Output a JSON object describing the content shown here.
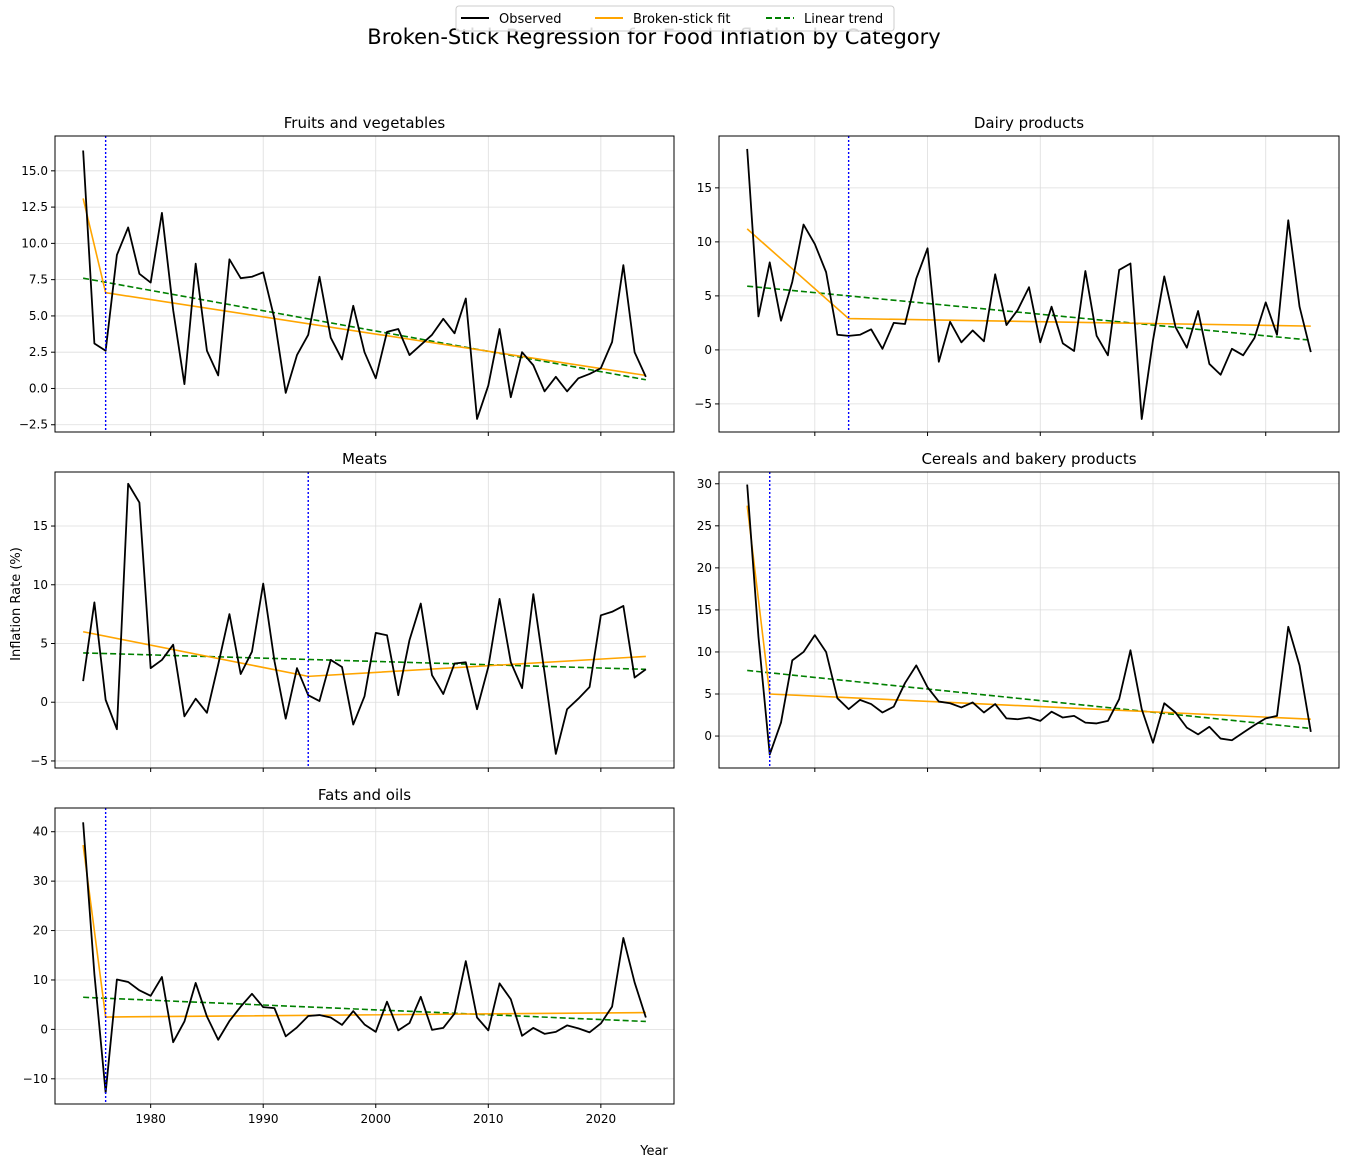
{
  "figure": {
    "title": "Broken-Stick Regression for Food Inflation by Category",
    "xlabel": "Year",
    "ylabel": "Inflation Rate (%)",
    "legend": [
      "Observed",
      "Broken-stick fit",
      "Linear trend"
    ],
    "colors": {
      "observed": "#000000",
      "fit": "#ffa500",
      "trend": "#008000",
      "breakpoint": "#0000ff"
    }
  },
  "chart_data": [
    {
      "type": "line",
      "title": "Fruits and vegetables",
      "x_start": 1974,
      "xlim": [
        1971.5,
        2026.5
      ],
      "ylim": [
        -3.0,
        17.4
      ],
      "yticks": [
        -2.5,
        0.0,
        2.5,
        5.0,
        7.5,
        10.0,
        12.5,
        15.0
      ],
      "ytick_labels": [
        "−2.5",
        "0.0",
        "2.5",
        "5.0",
        "7.5",
        "10.0",
        "12.5",
        "15.0"
      ],
      "observed": [
        16.4,
        3.1,
        2.6,
        9.2,
        11.1,
        7.9,
        7.3,
        12.1,
        5.4,
        0.3,
        8.6,
        2.6,
        0.9,
        8.9,
        7.6,
        7.7,
        8.0,
        4.8,
        -0.3,
        2.3,
        3.7,
        7.7,
        3.5,
        2.0,
        5.7,
        2.5,
        0.7,
        3.9,
        4.1,
        2.3,
        3.0,
        3.7,
        4.8,
        3.8,
        6.2,
        -2.1,
        0.2,
        4.1,
        -0.6,
        2.5,
        1.6,
        -0.2,
        0.8,
        -0.2,
        0.7,
        1.0,
        1.4,
        3.2,
        8.5,
        2.5,
        0.8
      ],
      "breakpoint": 1976,
      "fit": [
        [
          1974,
          13.1
        ],
        [
          1976,
          6.6
        ],
        [
          2024,
          0.9
        ]
      ],
      "trend": [
        [
          1974,
          7.6
        ],
        [
          2024,
          0.6
        ]
      ]
    },
    {
      "type": "line",
      "title": "Dairy products",
      "x_start": 1974,
      "xlim": [
        1971.5,
        2026.5
      ],
      "ylim": [
        -7.6,
        19.8
      ],
      "yticks": [
        -5,
        0,
        5,
        10,
        15
      ],
      "ytick_labels": [
        "−5",
        "0",
        "5",
        "10",
        "15"
      ],
      "observed": [
        18.6,
        3.1,
        8.1,
        2.7,
        6.3,
        11.6,
        9.8,
        7.2,
        1.4,
        1.3,
        1.4,
        1.9,
        0.1,
        2.5,
        2.4,
        6.6,
        9.4,
        -1.1,
        2.6,
        0.7,
        1.8,
        0.8,
        7.0,
        2.3,
        3.7,
        5.8,
        0.7,
        4.0,
        0.6,
        -0.1,
        7.3,
        1.3,
        -0.5,
        7.4,
        8.0,
        -6.4,
        0.9,
        6.8,
        2.1,
        0.2,
        3.6,
        -1.3,
        -2.3,
        0.1,
        -0.5,
        1.1,
        4.4,
        1.4,
        12.0,
        4.0,
        -0.2
      ],
      "breakpoint": 1983,
      "fit": [
        [
          1974,
          11.2
        ],
        [
          1983,
          2.9
        ],
        [
          2024,
          2.2
        ]
      ],
      "trend": [
        [
          1974,
          5.9
        ],
        [
          2024,
          0.9
        ]
      ]
    },
    {
      "type": "line",
      "title": "Meats",
      "x_start": 1974,
      "xlim": [
        1971.5,
        2026.5
      ],
      "ylim": [
        -5.6,
        19.6
      ],
      "yticks": [
        -5,
        0,
        5,
        10,
        15
      ],
      "ytick_labels": [
        "−5",
        "0",
        "5",
        "10",
        "15"
      ],
      "observed": [
        1.8,
        8.5,
        0.2,
        -2.3,
        18.6,
        17.0,
        2.9,
        3.6,
        4.9,
        -1.2,
        0.3,
        -0.9,
        3.2,
        7.5,
        2.4,
        4.3,
        10.1,
        3.5,
        -1.4,
        2.9,
        0.6,
        0.1,
        3.6,
        3.0,
        -1.9,
        0.5,
        5.9,
        5.7,
        0.6,
        5.3,
        8.4,
        2.3,
        0.7,
        3.3,
        3.4,
        -0.6,
        3.0,
        8.8,
        3.4,
        1.2,
        9.2,
        2.5,
        -4.4,
        -0.6,
        0.3,
        1.3,
        7.4,
        7.7,
        8.2,
        2.1,
        2.8
      ],
      "breakpoint": 1994,
      "fit": [
        [
          1974,
          6.0
        ],
        [
          1994,
          2.2
        ],
        [
          2024,
          3.9
        ]
      ],
      "trend": [
        [
          1974,
          4.2
        ],
        [
          2024,
          2.8
        ]
      ]
    },
    {
      "type": "line",
      "title": "Cereals and bakery products",
      "x_start": 1974,
      "xlim": [
        1971.5,
        2026.5
      ],
      "ylim": [
        -3.8,
        31.4
      ],
      "yticks": [
        0,
        5,
        10,
        15,
        20,
        25,
        30
      ],
      "ytick_labels": [
        "0",
        "5",
        "10",
        "15",
        "20",
        "25",
        "30"
      ],
      "observed": [
        29.9,
        11.8,
        -2.2,
        1.6,
        9.0,
        10.0,
        12.0,
        10.0,
        4.5,
        3.2,
        4.3,
        3.8,
        2.8,
        3.5,
        6.3,
        8.4,
        5.8,
        4.1,
        3.9,
        3.4,
        4.0,
        2.8,
        3.8,
        2.1,
        2.0,
        2.2,
        1.8,
        2.9,
        2.2,
        2.4,
        1.6,
        1.5,
        1.8,
        4.4,
        10.2,
        3.2,
        -0.8,
        3.9,
        2.8,
        1.0,
        0.2,
        1.1,
        -0.3,
        -0.5,
        0.4,
        1.3,
        2.1,
        2.4,
        13.0,
        8.4,
        0.5
      ],
      "breakpoint": 1976,
      "fit": [
        [
          1974,
          27.4
        ],
        [
          1976,
          5.0
        ],
        [
          2024,
          2.0
        ]
      ],
      "trend": [
        [
          1974,
          7.8
        ],
        [
          2024,
          0.9
        ]
      ]
    },
    {
      "type": "line",
      "title": "Fats and oils",
      "x_start": 1974,
      "xlim": [
        1971.5,
        2026.5
      ],
      "ylim": [
        -15.1,
        44.8
      ],
      "yticks": [
        -10,
        0,
        10,
        20,
        30,
        40
      ],
      "ytick_labels": [
        "−10",
        "0",
        "10",
        "20",
        "30",
        "40"
      ],
      "observed": [
        41.9,
        11.2,
        -12.8,
        10.1,
        9.6,
        7.9,
        6.8,
        10.6,
        -2.6,
        1.6,
        9.4,
        2.6,
        -2.1,
        1.7,
        4.6,
        7.2,
        4.5,
        4.3,
        -1.4,
        0.4,
        2.7,
        2.9,
        2.4,
        0.9,
        3.7,
        1.0,
        -0.5,
        5.6,
        -0.2,
        1.3,
        6.6,
        -0.1,
        0.3,
        3.2,
        13.8,
        2.4,
        -0.2,
        9.3,
        6.1,
        -1.3,
        0.3,
        -0.9,
        -0.5,
        0.8,
        0.2,
        -0.6,
        1.2,
        4.6,
        18.5,
        9.5,
        2.4
      ],
      "breakpoint": 1976,
      "fit": [
        [
          1974,
          37.3
        ],
        [
          1976,
          2.5
        ],
        [
          2024,
          3.4
        ]
      ],
      "trend": [
        [
          1974,
          6.5
        ],
        [
          2024,
          1.6
        ]
      ]
    }
  ],
  "xaxis": {
    "ticks": [
      1980,
      1990,
      2000,
      2010,
      2020
    ],
    "tick_labels": [
      "1980",
      "1990",
      "2000",
      "2010",
      "2020"
    ]
  }
}
